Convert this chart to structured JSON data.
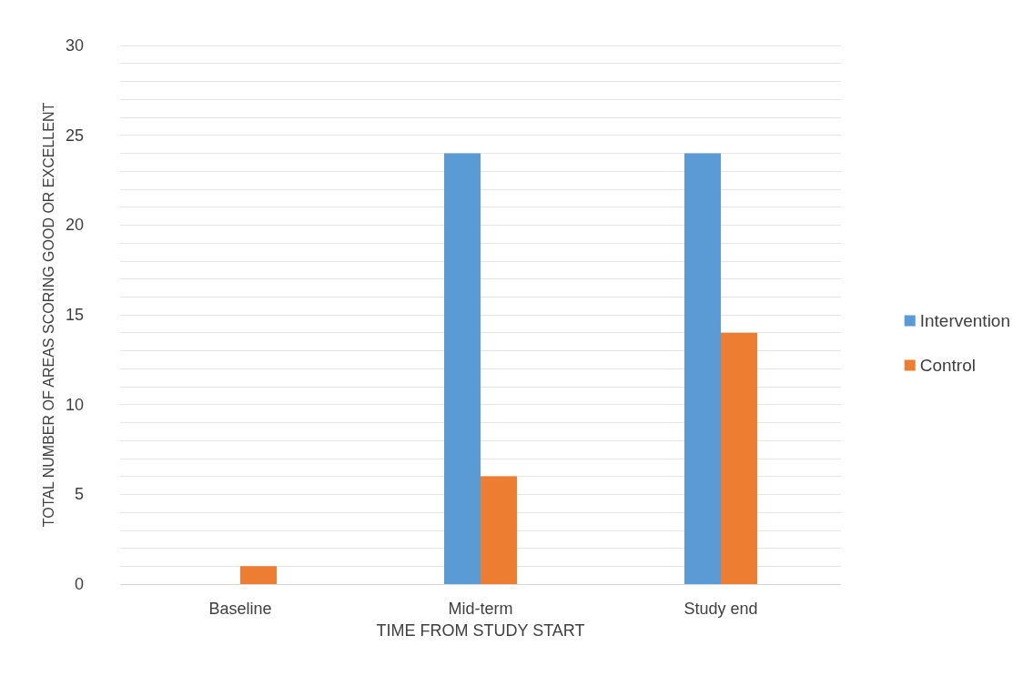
{
  "chart_data": {
    "type": "bar",
    "xlabel": "TIME FROM STUDY START",
    "ylabel": "TOTAL NUMBER OF AREAS SCORING GOOD OR EXCELLENT",
    "categories": [
      "Baseline",
      "Mid-term",
      "Study end"
    ],
    "series": [
      {
        "name": "Intervention",
        "color": "#5b9bd5",
        "values": [
          0,
          24,
          24
        ]
      },
      {
        "name": "Control",
        "color": "#ed7d31",
        "values": [
          1,
          6,
          14
        ]
      }
    ],
    "ylim": [
      0,
      30
    ],
    "yticks": [
      0,
      {
        "value": 1,
        "label": null
      },
      {
        "value": 2,
        "label": null
      },
      {
        "value": 3,
        "label": null
      },
      {
        "value": 4,
        "label": null
      },
      5,
      {
        "value": 6,
        "label": null
      },
      {
        "value": 7,
        "label": null
      },
      {
        "value": 8,
        "label": null
      },
      {
        "value": 9,
        "label": null
      },
      10,
      {
        "value": 11,
        "label": null
      },
      {
        "value": 12,
        "label": null
      },
      {
        "value": 13,
        "label": null
      },
      {
        "value": 14,
        "label": null
      },
      15,
      {
        "value": 16,
        "label": null
      },
      {
        "value": 17,
        "label": null
      },
      {
        "value": 18,
        "label": null
      },
      {
        "value": 19,
        "label": null
      },
      20,
      {
        "value": 21,
        "label": null
      },
      {
        "value": 22,
        "label": null
      },
      {
        "value": 23,
        "label": null
      },
      {
        "value": 24,
        "label": null
      },
      25,
      {
        "value": 26,
        "label": null
      },
      {
        "value": 27,
        "label": null
      },
      {
        "value": 28,
        "label": null
      },
      {
        "value": 29,
        "label": null
      },
      30
    ],
    "grid": "y",
    "legend": "right"
  }
}
